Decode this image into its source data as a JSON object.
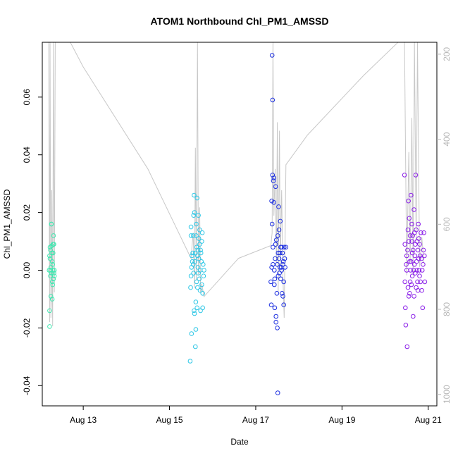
{
  "chart_data": {
    "type": "scatter",
    "title": "ATOM1 Northbound Chl_PM1_AMSSD",
    "xlabel": "Date",
    "ylabel": "Chl_PM1_AMSSD",
    "x_ticks": [
      "Aug 13",
      "Aug 15",
      "Aug 17",
      "Aug 19",
      "Aug 21"
    ],
    "x_tick_days": [
      13,
      15,
      17,
      19,
      21
    ],
    "xlim_days": [
      12.05,
      21.2
    ],
    "ylim": [
      -0.047,
      0.079
    ],
    "y_ticks": [
      -0.04,
      -0.02,
      0.0,
      0.02,
      0.04,
      0.06
    ],
    "y_tick_labels": [
      "-0.04",
      "-0.02",
      "0.00",
      "0.02",
      "0.04",
      "0.06"
    ],
    "y2_ticks": [
      200,
      400,
      600,
      800,
      1000
    ],
    "y2_tick_labels": [
      "200",
      "400",
      "600",
      "800",
      "1000"
    ],
    "y2lim_reversed": [
      1027,
      172
    ],
    "grid": false,
    "legend": "none",
    "point_color_scale": [
      "#3ee8b0",
      "#2fc7e6",
      "#1b2ee0",
      "#8a1ee8"
    ],
    "secondary_line_color": "#c8c8c8",
    "clusters": [
      {
        "name": "Aug 12",
        "x_day_range": [
          12.2,
          12.35
        ],
        "points": [
          [
            12.21,
            0.0
          ],
          [
            12.22,
            -0.014
          ],
          [
            12.22,
            -0.0195
          ],
          [
            12.23,
            0.004
          ],
          [
            12.23,
            0.008
          ],
          [
            12.24,
            0.007
          ],
          [
            12.24,
            -0.002
          ],
          [
            12.25,
            -0.009
          ],
          [
            12.25,
            0.001
          ],
          [
            12.26,
            0.016
          ],
          [
            12.26,
            0.016
          ],
          [
            12.27,
            0.0085
          ],
          [
            12.27,
            0.006
          ],
          [
            12.28,
            -0.01
          ],
          [
            12.28,
            0.003
          ],
          [
            12.29,
            -0.005
          ],
          [
            12.29,
            0.002
          ],
          [
            12.3,
            0.009
          ],
          [
            12.3,
            0.006
          ],
          [
            12.31,
            0.012
          ],
          [
            12.31,
            -0.003
          ],
          [
            12.32,
            -0.001
          ],
          [
            12.33,
            0.0
          ],
          [
            12.33,
            -0.002
          ],
          [
            12.22,
            0.005
          ],
          [
            12.24,
            0.0
          ],
          [
            12.26,
            -0.001
          ],
          [
            12.28,
            -0.004
          ],
          [
            12.3,
            0.0
          ],
          [
            12.32,
            0.009
          ]
        ]
      },
      {
        "name": "Aug 15",
        "x_day_range": [
          15.48,
          15.8
        ],
        "points": [
          [
            15.48,
            -0.0315
          ],
          [
            15.49,
            -0.006
          ],
          [
            15.5,
            0.015
          ],
          [
            15.5,
            0.012
          ],
          [
            15.5,
            -0.002
          ],
          [
            15.51,
            0.001
          ],
          [
            15.51,
            -0.022
          ],
          [
            15.52,
            0.005
          ],
          [
            15.53,
            0.003
          ],
          [
            15.54,
            0.006
          ],
          [
            15.55,
            0.012
          ],
          [
            15.55,
            0.002
          ],
          [
            15.56,
            0.019
          ],
          [
            15.56,
            -0.001
          ],
          [
            15.57,
            0.026
          ],
          [
            15.57,
            -0.014
          ],
          [
            15.58,
            -0.015
          ],
          [
            15.58,
            0.02
          ],
          [
            15.59,
            0.003
          ],
          [
            15.6,
            -0.0265
          ],
          [
            15.6,
            0.006
          ],
          [
            15.61,
            -0.0205
          ],
          [
            15.61,
            -0.011
          ],
          [
            15.62,
            0.016
          ],
          [
            15.62,
            0.012
          ],
          [
            15.63,
            0.008
          ],
          [
            15.63,
            -0.004
          ],
          [
            15.64,
            -0.013
          ],
          [
            15.64,
            0.025
          ],
          [
            15.65,
            0.005
          ],
          [
            15.65,
            -0.006
          ],
          [
            15.66,
            0.001
          ],
          [
            15.66,
            0.007
          ],
          [
            15.67,
            0.019
          ],
          [
            15.67,
            -0.001
          ],
          [
            15.68,
            0.011
          ],
          [
            15.68,
            0.004
          ],
          [
            15.69,
            -0.003
          ],
          [
            15.7,
            0.014
          ],
          [
            15.7,
            0.009
          ],
          [
            15.71,
            0.0
          ],
          [
            15.71,
            -0.007
          ],
          [
            15.72,
            -0.014
          ],
          [
            15.72,
            0.007
          ],
          [
            15.73,
            0.006
          ],
          [
            15.74,
            0.003
          ],
          [
            15.75,
            -0.005
          ],
          [
            15.75,
            0.01
          ],
          [
            15.76,
            0.013
          ],
          [
            15.77,
            -0.013
          ],
          [
            15.77,
            -0.008
          ],
          [
            15.78,
            0.002
          ],
          [
            15.79,
            -0.002
          ],
          [
            15.8,
            0.0
          ]
        ]
      },
      {
        "name": "Aug 17",
        "x_day_range": [
          17.35,
          17.7
        ],
        "points": [
          [
            17.35,
            -0.004
          ],
          [
            17.36,
            -0.012
          ],
          [
            17.37,
            0.001
          ],
          [
            17.37,
            0.024
          ],
          [
            17.38,
            0.016
          ],
          [
            17.38,
            0.0745
          ],
          [
            17.39,
            0.059
          ],
          [
            17.39,
            0.033
          ],
          [
            17.4,
            0.008
          ],
          [
            17.4,
            0.002
          ],
          [
            17.41,
            0.031
          ],
          [
            17.42,
            0.032
          ],
          [
            17.42,
            0.0235
          ],
          [
            17.43,
            0.0
          ],
          [
            17.43,
            -0.005
          ],
          [
            17.44,
            -0.013
          ],
          [
            17.44,
            -0.003
          ],
          [
            17.45,
            0.004
          ],
          [
            17.46,
            0.009
          ],
          [
            17.46,
            0.029
          ],
          [
            17.47,
            -0.016
          ],
          [
            17.47,
            -0.018
          ],
          [
            17.48,
            0.0105
          ],
          [
            17.49,
            -0.008
          ],
          [
            17.5,
            0.002
          ],
          [
            17.5,
            -0.02
          ],
          [
            17.51,
            -0.0425
          ],
          [
            17.51,
            0.012
          ],
          [
            17.52,
            -0.002
          ],
          [
            17.52,
            0.006
          ],
          [
            17.53,
            0.022
          ],
          [
            17.54,
            0.014
          ],
          [
            17.54,
            0.004
          ],
          [
            17.55,
            -0.001
          ],
          [
            17.56,
            0.001
          ],
          [
            17.56,
            0.006
          ],
          [
            17.57,
            0.017
          ],
          [
            17.58,
            0.008
          ],
          [
            17.58,
            -0.003
          ],
          [
            17.59,
            0.001
          ],
          [
            17.6,
            0.0
          ],
          [
            17.6,
            0.008
          ],
          [
            17.61,
            -0.008
          ],
          [
            17.62,
            0.006
          ],
          [
            17.63,
            0.002
          ],
          [
            17.63,
            -0.009
          ],
          [
            17.64,
            0.003
          ],
          [
            17.65,
            -0.004
          ],
          [
            17.65,
            -0.012
          ],
          [
            17.66,
            0.008
          ],
          [
            17.67,
            0.004
          ],
          [
            17.68,
            0.001
          ],
          [
            17.7,
            0.008
          ]
        ]
      },
      {
        "name": "Aug 20-21",
        "x_day_range": [
          20.45,
          20.92
        ],
        "points": [
          [
            20.45,
            0.033
          ],
          [
            20.46,
            0.009
          ],
          [
            20.46,
            -0.004
          ],
          [
            20.47,
            -0.013
          ],
          [
            20.48,
            -0.019
          ],
          [
            20.49,
            0.002
          ],
          [
            20.5,
            0.0
          ],
          [
            20.5,
            0.005
          ],
          [
            20.51,
            -0.0265
          ],
          [
            20.52,
            0.007
          ],
          [
            20.53,
            0.014
          ],
          [
            20.53,
            -0.006
          ],
          [
            20.54,
            0.024
          ],
          [
            20.55,
            0.01
          ],
          [
            20.55,
            -0.009
          ],
          [
            20.56,
            0.018
          ],
          [
            20.57,
            0.003
          ],
          [
            20.57,
            -0.008
          ],
          [
            20.58,
            0.012
          ],
          [
            20.58,
            -0.004
          ],
          [
            20.59,
            0.0
          ],
          [
            20.6,
            0.026
          ],
          [
            20.6,
            0.003
          ],
          [
            20.61,
            -0.005
          ],
          [
            20.62,
            0.016
          ],
          [
            20.62,
            0.01
          ],
          [
            20.63,
            0.006
          ],
          [
            20.63,
            -0.002
          ],
          [
            20.64,
            0.012
          ],
          [
            20.65,
            -0.016
          ],
          [
            20.65,
            0.007
          ],
          [
            20.66,
            0.0
          ],
          [
            20.67,
            0.021
          ],
          [
            20.67,
            -0.009
          ],
          [
            20.68,
            0.013
          ],
          [
            20.68,
            0.002
          ],
          [
            20.69,
            0.005
          ],
          [
            20.7,
            0.009
          ],
          [
            20.7,
            -0.001
          ],
          [
            20.71,
            0.033
          ],
          [
            20.72,
            0.014
          ],
          [
            20.72,
            -0.006
          ],
          [
            20.73,
            0.003
          ],
          [
            20.74,
            0.01
          ],
          [
            20.74,
            0.0
          ],
          [
            20.75,
            -0.004
          ],
          [
            20.76,
            0.007
          ],
          [
            20.76,
            -0.007
          ],
          [
            20.77,
            0.016
          ],
          [
            20.78,
            0.011
          ],
          [
            20.78,
            0.004
          ],
          [
            20.79,
            0.0
          ],
          [
            20.8,
            -0.002
          ],
          [
            20.8,
            0.009
          ],
          [
            20.81,
            0.005
          ],
          [
            20.82,
            -0.004
          ],
          [
            20.83,
            0.013
          ],
          [
            20.84,
            0.004
          ],
          [
            20.85,
            -0.007
          ],
          [
            20.86,
            0.0
          ],
          [
            20.87,
            -0.013
          ],
          [
            20.88,
            0.002
          ],
          [
            20.89,
            0.007
          ],
          [
            20.9,
            0.013
          ],
          [
            20.91,
            0.005
          ],
          [
            20.92,
            -0.004
          ]
        ]
      }
    ],
    "secondary_line": [
      [
        12.2,
        172
      ],
      [
        12.22,
        830
      ],
      [
        12.23,
        172
      ],
      [
        12.25,
        820
      ],
      [
        12.26,
        780
      ],
      [
        12.27,
        520
      ],
      [
        12.29,
        840
      ],
      [
        12.31,
        172
      ],
      [
        12.33,
        760
      ],
      [
        12.35,
        172
      ],
      [
        12.7,
        172
      ],
      [
        13.0,
        230
      ],
      [
        14.5,
        470
      ],
      [
        15.5,
        680
      ],
      [
        15.55,
        620
      ],
      [
        15.58,
        750
      ],
      [
        15.6,
        420
      ],
      [
        15.62,
        730
      ],
      [
        15.65,
        172
      ],
      [
        15.67,
        720
      ],
      [
        15.7,
        560
      ],
      [
        15.72,
        760
      ],
      [
        15.75,
        740
      ],
      [
        15.8,
        770
      ],
      [
        16.6,
        680
      ],
      [
        17.35,
        650
      ],
      [
        17.38,
        620
      ],
      [
        17.4,
        172
      ],
      [
        17.42,
        580
      ],
      [
        17.45,
        470
      ],
      [
        17.48,
        690
      ],
      [
        17.5,
        360
      ],
      [
        17.52,
        760
      ],
      [
        17.55,
        380
      ],
      [
        17.57,
        700
      ],
      [
        17.6,
        520
      ],
      [
        17.63,
        720
      ],
      [
        17.66,
        820
      ],
      [
        17.7,
        460
      ],
      [
        18.2,
        390
      ],
      [
        19.5,
        250
      ],
      [
        20.3,
        172
      ],
      [
        20.45,
        172
      ],
      [
        20.5,
        720
      ],
      [
        20.55,
        430
      ],
      [
        20.58,
        690
      ],
      [
        20.62,
        350
      ],
      [
        20.65,
        720
      ],
      [
        20.68,
        172
      ],
      [
        20.72,
        640
      ],
      [
        20.75,
        172
      ],
      [
        20.8,
        700
      ],
      [
        20.85,
        630
      ],
      [
        20.9,
        690
      ]
    ]
  }
}
